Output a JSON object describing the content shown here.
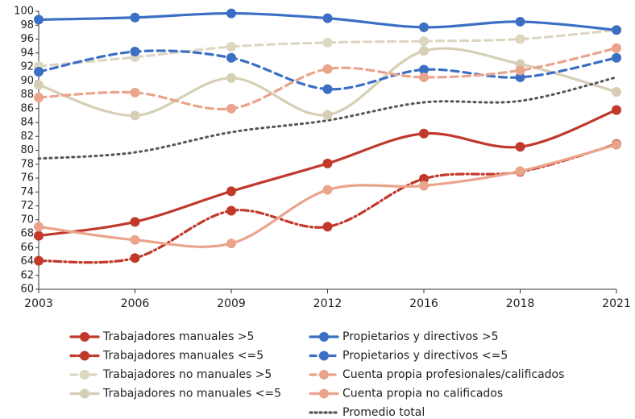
{
  "chart_data": {
    "type": "line",
    "categories": [
      "2003",
      "2006",
      "2009",
      "2012",
      "2016",
      "2018",
      "2021"
    ],
    "ylim": [
      60,
      100
    ],
    "yticks": [
      60,
      62,
      64,
      66,
      68,
      70,
      72,
      74,
      76,
      78,
      80,
      82,
      84,
      86,
      88,
      90,
      92,
      94,
      96,
      98,
      100
    ],
    "series": [
      {
        "name": "Trabajadores manuales >5",
        "color": "#c0392b",
        "dash": "solid",
        "markers": true,
        "values": [
          67.7,
          69.7,
          74.1,
          78.1,
          82.4,
          80.5,
          85.8
        ]
      },
      {
        "name": "Trabajadores manuales <=5",
        "color": "#c0392b",
        "dash": "dashdot",
        "markers": true,
        "values": [
          64.1,
          64.5,
          71.3,
          69.0,
          75.9,
          76.9,
          80.9
        ]
      },
      {
        "name": "Trabajadores no manuales >5",
        "color": "#ddd6c0",
        "dash": "dash",
        "markers": true,
        "values": [
          92.1,
          93.4,
          94.9,
          95.5,
          95.7,
          96.0,
          97.3
        ]
      },
      {
        "name": "Trabajadores no manuales <=5",
        "color": "#d6cfb6",
        "dash": "solid",
        "markers": true,
        "values": [
          89.4,
          85.0,
          90.4,
          85.1,
          94.3,
          92.4,
          88.4
        ]
      },
      {
        "name": "Propietarios y directivos >5",
        "color": "#3b6fc4",
        "dash": "solid",
        "markers": true,
        "values": [
          98.8,
          99.1,
          99.7,
          99.0,
          97.7,
          98.5,
          97.3
        ]
      },
      {
        "name": "Propietarios y directivos <=5",
        "color": "#3b6fc4",
        "dash": "dash",
        "markers": true,
        "values": [
          91.3,
          94.2,
          93.3,
          88.8,
          91.6,
          90.5,
          93.3
        ]
      },
      {
        "name": "Cuenta propia profesionales/calificados",
        "color": "#eaa48c",
        "dash": "dash",
        "markers": true,
        "values": [
          87.6,
          88.3,
          86.0,
          91.7,
          90.5,
          91.5,
          94.7
        ]
      },
      {
        "name": "Cuenta propia no calificados",
        "color": "#eaa48c",
        "dash": "solid",
        "markers": true,
        "values": [
          69.0,
          67.1,
          66.6,
          74.3,
          74.9,
          77.0,
          80.8
        ]
      },
      {
        "name": "Promedio total",
        "color": "#555555",
        "dash": "dot",
        "markers": false,
        "values": [
          78.8,
          79.7,
          82.6,
          84.3,
          86.9,
          87.1,
          90.5
        ]
      }
    ]
  }
}
